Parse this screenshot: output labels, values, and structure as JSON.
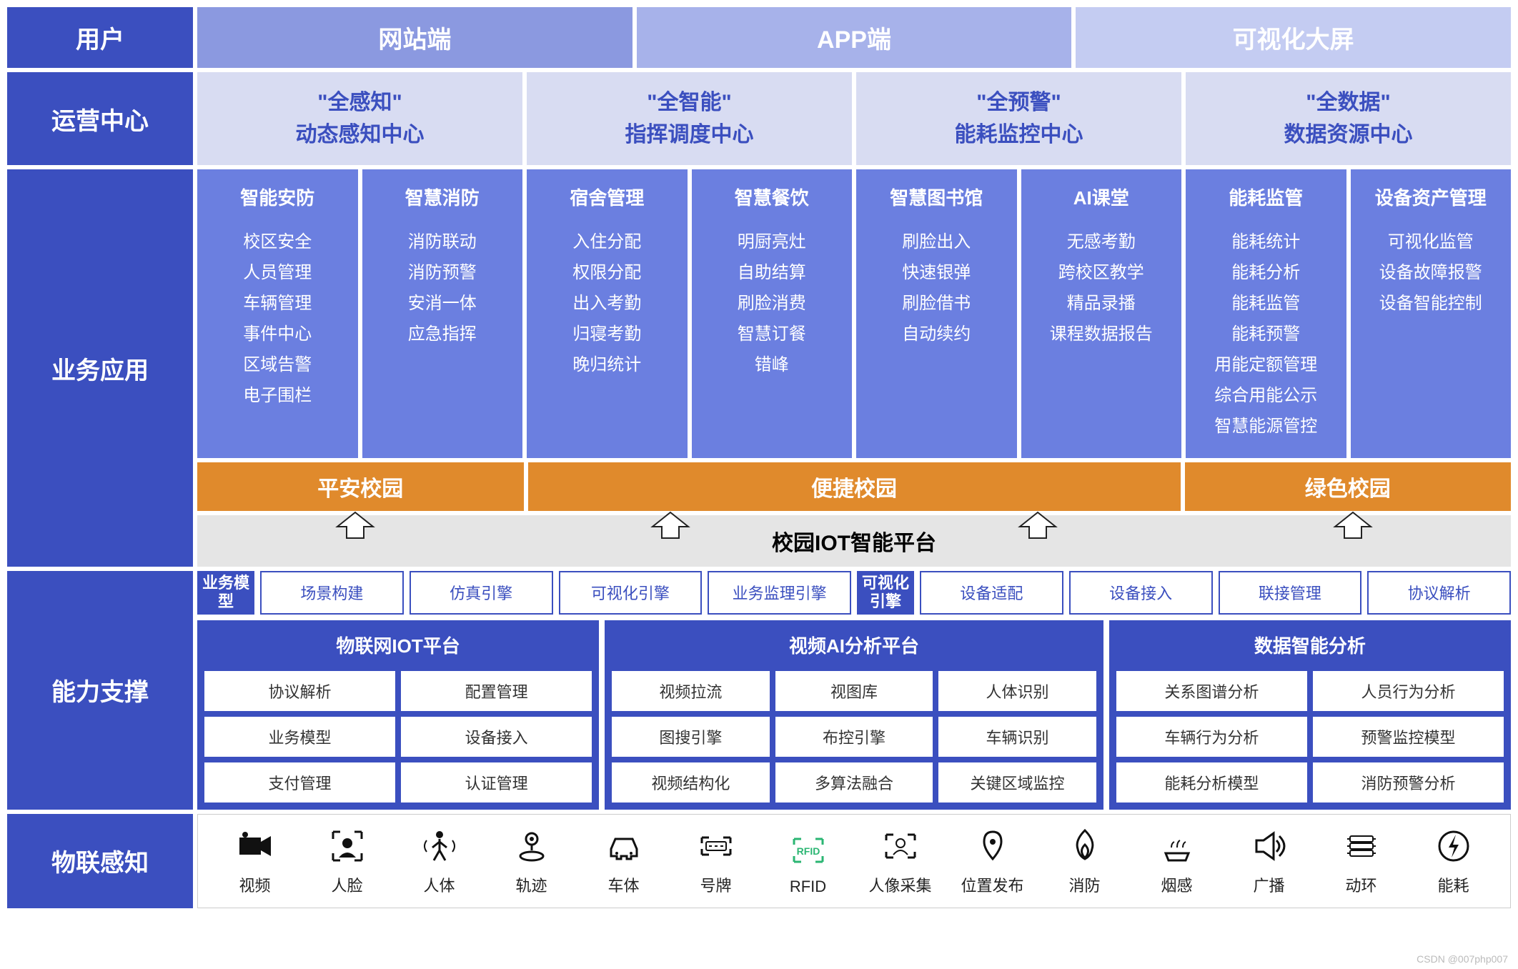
{
  "colors": {
    "side": "#3b4fbf",
    "user_tabs": [
      "#8b99e0",
      "#a7b2ea",
      "#c4ccf2"
    ],
    "ops_bg": "#d8dcf2",
    "ops_fg": "#3b4fbf",
    "biz_card": "#6b7fe0",
    "banner": "#e08a2c",
    "platform_bg": "#e5e5e5",
    "panel_bg": "#3b4fbf",
    "rfid": "#2bb673"
  },
  "row1": {
    "side": "用户",
    "tabs": [
      "网站端",
      "APP端",
      "可视化大屏"
    ]
  },
  "row2": {
    "side": "运营中心",
    "tabs": [
      {
        "t1": "\"全感知\"",
        "t2": "动态感知中心"
      },
      {
        "t1": "\"全智能\"",
        "t2": "指挥调度中心"
      },
      {
        "t1": "\"全预警\"",
        "t2": "能耗监控中心"
      },
      {
        "t1": "\"全数据\"",
        "t2": "数据资源中心"
      }
    ]
  },
  "row3": {
    "side": "业务应用",
    "cards": [
      {
        "hd": "智能安防",
        "items": [
          "校区安全",
          "人员管理",
          "车辆管理",
          "事件中心",
          "区域告警",
          "电子围栏"
        ]
      },
      {
        "hd": "智慧消防",
        "items": [
          "消防联动",
          "消防预警",
          "安消一体",
          "应急指挥"
        ]
      },
      {
        "hd": "宿舍管理",
        "items": [
          "入住分配",
          "权限分配",
          "出入考勤",
          "归寝考勤",
          "晚归统计"
        ]
      },
      {
        "hd": "智慧餐饮",
        "items": [
          "明厨亮灶",
          "自助结算",
          "刷脸消费",
          "智慧订餐",
          "错峰"
        ]
      },
      {
        "hd": "智慧图书馆",
        "items": [
          "刷脸出入",
          "快速银弹",
          "刷脸借书",
          "自动续约"
        ]
      },
      {
        "hd": "AI课堂",
        "items": [
          "无感考勤",
          "跨校区教学",
          "精品录播",
          "课程数据报告"
        ]
      },
      {
        "hd": "能耗监管",
        "items": [
          "能耗统计",
          "能耗分析",
          "能耗监管",
          "能耗预警",
          "用能定额管理",
          "综合用能公示",
          "智慧能源管控"
        ]
      },
      {
        "hd": "设备资产管理",
        "items": [
          "可视化监管",
          "设备故障报警",
          "设备智能控制"
        ]
      }
    ],
    "banners": [
      {
        "label": "平安校园",
        "span": 2
      },
      {
        "label": "便捷校园",
        "span": 4
      },
      {
        "label": "绿色校园",
        "span": 2
      }
    ],
    "platform": "校园IOT智能平台",
    "arrow_positions_pct": [
      12,
      36,
      64,
      88
    ]
  },
  "row4": {
    "side": "能力支撑",
    "strips": [
      {
        "label": "业务模型",
        "cells": [
          "场景构建",
          "仿真引擎",
          "可视化引擎",
          "业务监理引擎"
        ]
      },
      {
        "label": "可视化引擎",
        "cells": [
          "设备适配",
          "设备接入",
          "联接管理",
          "协议解析"
        ]
      }
    ],
    "panels": [
      {
        "hd": "物联网IOT平台",
        "cols": 2,
        "cells": [
          "协议解析",
          "配置管理",
          "业务模型",
          "设备接入",
          "支付管理",
          "认证管理"
        ],
        "flex": 4
      },
      {
        "hd": "视频AI分析平台",
        "cols": 3,
        "cells": [
          "视频拉流",
          "视图库",
          "人体识别",
          "图搜引擎",
          "布控引擎",
          "车辆识别",
          "视频结构化",
          "多算法融合",
          "关键区域监控"
        ],
        "flex": 5
      },
      {
        "hd": "数据智能分析",
        "cols": 2,
        "cells": [
          "关系图谱分析",
          "人员行为分析",
          "车辆行为分析",
          "预警监控模型",
          "能耗分析模型",
          "消防预警分析"
        ],
        "flex": 4
      }
    ]
  },
  "row5": {
    "side": "物联感知",
    "items": [
      {
        "name": "video-icon",
        "label": "视频"
      },
      {
        "name": "face-icon",
        "label": "人脸"
      },
      {
        "name": "body-icon",
        "label": "人体"
      },
      {
        "name": "track-icon",
        "label": "轨迹"
      },
      {
        "name": "car-icon",
        "label": "车体"
      },
      {
        "name": "plate-icon",
        "label": "号牌"
      },
      {
        "name": "rfid-icon",
        "label": "RFID",
        "color": "#2bb673"
      },
      {
        "name": "portrait-icon",
        "label": "人像采集"
      },
      {
        "name": "location-icon",
        "label": "位置发布"
      },
      {
        "name": "fire-icon",
        "label": "消防"
      },
      {
        "name": "smoke-icon",
        "label": "烟感"
      },
      {
        "name": "broadcast-icon",
        "label": "广播"
      },
      {
        "name": "env-icon",
        "label": "动环"
      },
      {
        "name": "energy-icon",
        "label": "能耗"
      }
    ]
  },
  "watermark": "CSDN @007php007"
}
